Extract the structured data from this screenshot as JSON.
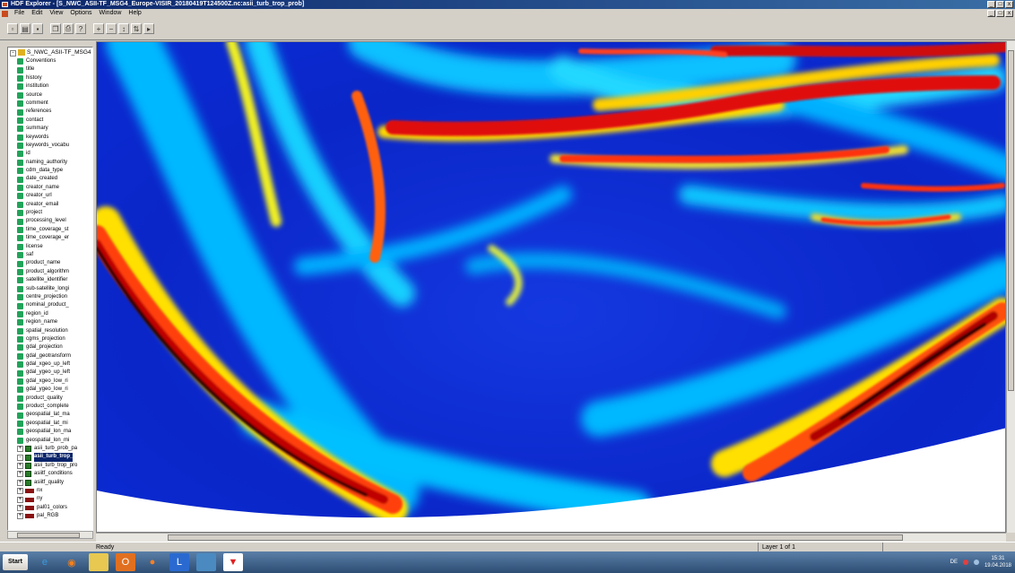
{
  "window": {
    "title": "HDF Explorer - [S_NWC_ASII-TF_MSG4_Europe-VISIR_20180419T124500Z.nc:asii_turb_trop_prob]"
  },
  "menu": [
    "File",
    "Edit",
    "View",
    "Options",
    "Window",
    "Help"
  ],
  "window_buttons": [
    "_",
    "□",
    "x"
  ],
  "toolbar_icons": [
    "new-icon",
    "open-icon",
    "save-icon",
    "copy-icon",
    "print-icon",
    "help-icon",
    "zoom-in-icon",
    "zoom-out-icon",
    "fit-icon",
    "flip-icon",
    "play-icon"
  ],
  "tree": {
    "root": "S_NWC_ASII-TF_MSG4",
    "items": [
      {
        "label": "Conventions",
        "kind": "attr"
      },
      {
        "label": "title",
        "kind": "attr"
      },
      {
        "label": "history",
        "kind": "attr"
      },
      {
        "label": "institution",
        "kind": "attr"
      },
      {
        "label": "source",
        "kind": "attr"
      },
      {
        "label": "comment",
        "kind": "attr"
      },
      {
        "label": "references",
        "kind": "attr"
      },
      {
        "label": "contact",
        "kind": "attr"
      },
      {
        "label": "summary",
        "kind": "attr"
      },
      {
        "label": "keywords",
        "kind": "attr"
      },
      {
        "label": "keywords_vocabu",
        "kind": "attr"
      },
      {
        "label": "id",
        "kind": "attr"
      },
      {
        "label": "naming_authority",
        "kind": "attr"
      },
      {
        "label": "cdm_data_type",
        "kind": "attr"
      },
      {
        "label": "date_created",
        "kind": "attr"
      },
      {
        "label": "creator_name",
        "kind": "attr"
      },
      {
        "label": "creator_url",
        "kind": "attr"
      },
      {
        "label": "creator_email",
        "kind": "attr"
      },
      {
        "label": "project",
        "kind": "attr"
      },
      {
        "label": "processing_level",
        "kind": "attr"
      },
      {
        "label": "time_coverage_st",
        "kind": "attr"
      },
      {
        "label": "time_coverage_er",
        "kind": "attr"
      },
      {
        "label": "license",
        "kind": "attr"
      },
      {
        "label": "saf",
        "kind": "attr"
      },
      {
        "label": "product_name",
        "kind": "attr"
      },
      {
        "label": "product_algorithm",
        "kind": "attr"
      },
      {
        "label": "satellite_identifier",
        "kind": "attr"
      },
      {
        "label": "sub-satellite_longi",
        "kind": "attr"
      },
      {
        "label": "centre_projection",
        "kind": "attr"
      },
      {
        "label": "nominal_product_",
        "kind": "attr"
      },
      {
        "label": "region_id",
        "kind": "attr"
      },
      {
        "label": "region_name",
        "kind": "attr"
      },
      {
        "label": "spatial_resolution",
        "kind": "attr"
      },
      {
        "label": "cgms_projection",
        "kind": "attr"
      },
      {
        "label": "gdal_projection",
        "kind": "attr"
      },
      {
        "label": "gdal_geotransform",
        "kind": "attr"
      },
      {
        "label": "gdal_xgeo_up_left",
        "kind": "attr"
      },
      {
        "label": "gdal_ygeo_up_left",
        "kind": "attr"
      },
      {
        "label": "gdal_xgeo_low_ri",
        "kind": "attr"
      },
      {
        "label": "gdal_ygeo_low_ri",
        "kind": "attr"
      },
      {
        "label": "product_quality",
        "kind": "attr"
      },
      {
        "label": "product_complete",
        "kind": "attr"
      },
      {
        "label": "geospatial_lat_ma",
        "kind": "attr"
      },
      {
        "label": "geospatial_lat_mi",
        "kind": "attr"
      },
      {
        "label": "geospatial_lon_ma",
        "kind": "attr"
      },
      {
        "label": "geospatial_lon_mi",
        "kind": "attr"
      },
      {
        "label": "asii_turb_prob_pa",
        "kind": "ds",
        "expander": "+"
      },
      {
        "label": "asii_turb_trop_",
        "kind": "ds",
        "expander": "-",
        "selected": true
      },
      {
        "label": "asii_turb_trop_pro",
        "kind": "ds",
        "expander": "+"
      },
      {
        "label": "asiitf_conditions",
        "kind": "ds",
        "expander": "+"
      },
      {
        "label": "asiitf_quality",
        "kind": "ds",
        "expander": "+"
      },
      {
        "label": "nx",
        "kind": "arr",
        "expander": "+"
      },
      {
        "label": "ny",
        "kind": "arr",
        "expander": "+"
      },
      {
        "label": "pal01_colors",
        "kind": "arr",
        "expander": "+"
      },
      {
        "label": "pal_RGB",
        "kind": "arr",
        "expander": "+"
      }
    ]
  },
  "status": {
    "left": "Ready",
    "layer": "Layer 1 of 1"
  },
  "taskbar": {
    "start": "Start",
    "apps": [
      "ie-icon",
      "media-icon",
      "explorer-icon",
      "outlook-icon",
      "firefox-icon",
      "lync-icon",
      "remote-icon",
      "hdf-icon"
    ],
    "language": "DE",
    "time": "15:31",
    "date": "19.04.2018"
  },
  "colors": {
    "titlebar": "#0a246a",
    "low": "#0b2bd8",
    "mid": "#00c8ff",
    "yellow": "#ffe000",
    "high": "#e01010"
  }
}
